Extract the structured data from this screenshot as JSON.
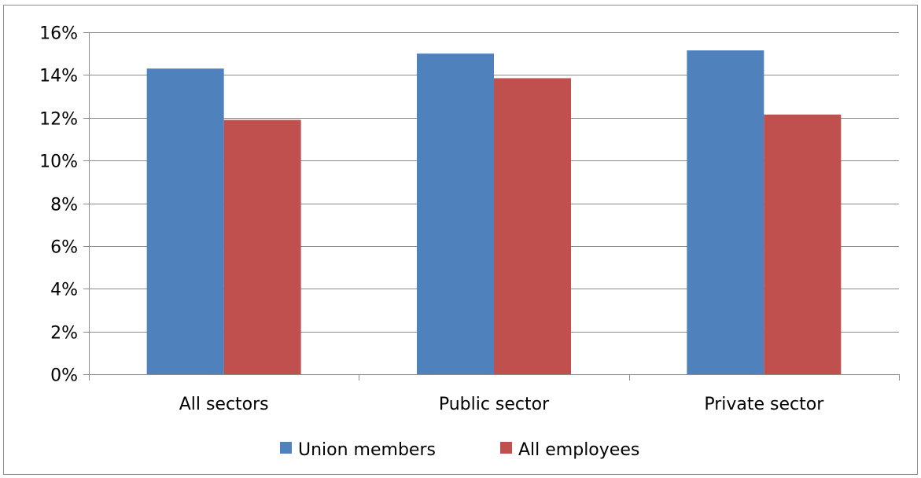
{
  "chart_data": {
    "type": "bar",
    "title": "",
    "xlabel": "",
    "ylabel": "",
    "categories": [
      "All sectors",
      "Public sector",
      "Private sector"
    ],
    "series": [
      {
        "name": "Union members",
        "color": "#4f81bd",
        "values": [
          14.3,
          15.0,
          15.15
        ]
      },
      {
        "name": "All employees",
        "color": "#c0504d",
        "values": [
          11.9,
          13.85,
          12.15
        ]
      }
    ],
    "ylim": [
      0,
      16
    ],
    "ytick_values": [
      0,
      2,
      4,
      6,
      8,
      10,
      12,
      14,
      16
    ],
    "ytick_labels": [
      "0%",
      "2%",
      "4%",
      "6%",
      "8%",
      "10%",
      "12%",
      "14%",
      "16%"
    ],
    "grid": true,
    "legend_position": "bottom"
  }
}
